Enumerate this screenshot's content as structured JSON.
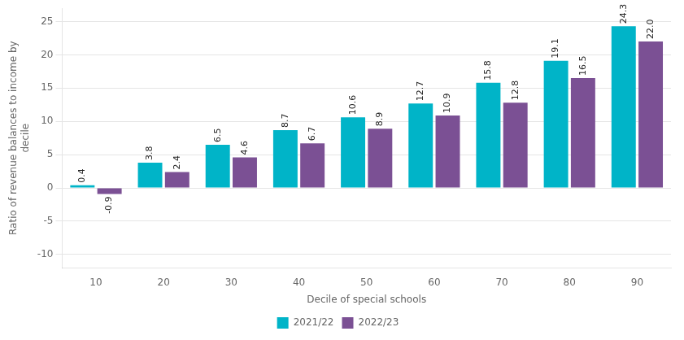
{
  "chart_data": {
    "type": "bar",
    "categories": [
      "10",
      "20",
      "30",
      "40",
      "50",
      "60",
      "70",
      "80",
      "90"
    ],
    "series": [
      {
        "name": "2021/22",
        "color": "#00B4C8",
        "values": [
          0.4,
          3.8,
          6.5,
          8.7,
          10.6,
          12.7,
          15.8,
          19.1,
          24.3
        ],
        "value_labels": [
          "0.4",
          "3.8",
          "6.5",
          "8.7",
          "10.6",
          "12.7",
          "15.8",
          "19.1",
          "24.3"
        ]
      },
      {
        "name": "2022/23",
        "color": "#7B5094",
        "values": [
          -0.9,
          2.4,
          4.6,
          6.7,
          8.9,
          10.9,
          12.8,
          16.5,
          22.0
        ],
        "value_labels": [
          "-0.9",
          "2.4",
          "4.6",
          "6.7",
          "8.9",
          "10.9",
          "12.8",
          "16.5",
          "22.0"
        ]
      }
    ],
    "x_label": "Decile of special schools",
    "y_label": "Ratio of revenue balances to income by\ndecile",
    "ylim": [
      -12,
      27
    ],
    "yticks": [
      -10,
      -5,
      0,
      5,
      10,
      15,
      20,
      25
    ],
    "grid": true,
    "legend": "bottom",
    "data_labels": true
  }
}
